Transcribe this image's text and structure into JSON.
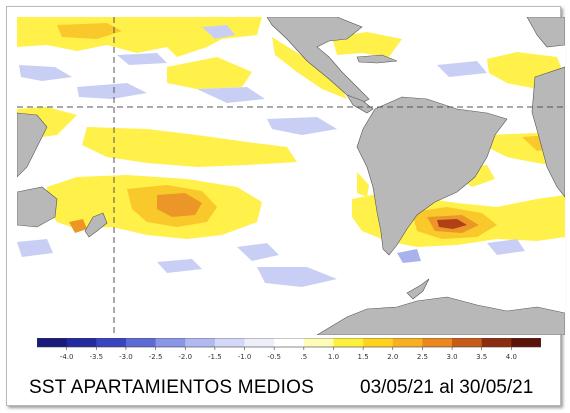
{
  "caption": {
    "title": "SST APARTAMIENTOS MEDIOS",
    "date_range": "03/05/21 al 30/05/21"
  },
  "legend": {
    "ticks": [
      "-4.0",
      "-3.5",
      "-3.0",
      "-2.5",
      "-2.0",
      "-1.5",
      "-1.0",
      "-0.5",
      ".5",
      "1.0",
      "1.5",
      "2.0",
      "2.5",
      "3.0",
      "3.5",
      "4.0"
    ],
    "colors": [
      "#1a1a7a",
      "#232aa0",
      "#3944c0",
      "#5d6ad6",
      "#8b95e6",
      "#b2b9f0",
      "#d3d8f8",
      "#eceef9",
      "#ffffff",
      "#fffcb8",
      "#fff03c",
      "#ffd21e",
      "#f8b020",
      "#e8881e",
      "#c85a18",
      "#8c2c10",
      "#5c1208"
    ]
  },
  "map_colors": {
    "land": "#b8b8b8",
    "ocean": "#ffffff",
    "warm_weak": "#fff04a",
    "warm_mid": "#f9c82a",
    "warm_strong": "#ec9628",
    "warm_peak": "#b04018",
    "cool_weak": "#c9cff4",
    "cool_mid": "#aab2ec"
  }
}
